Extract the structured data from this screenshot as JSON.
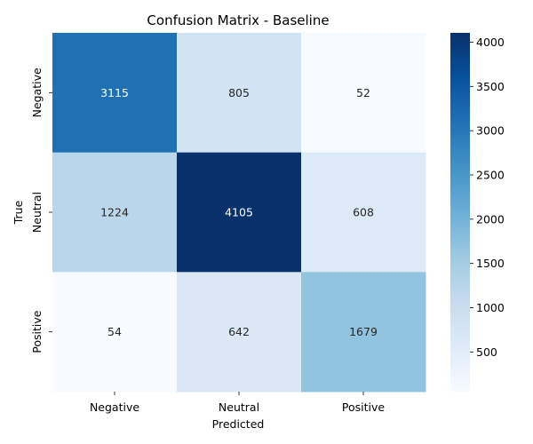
{
  "chart_data": {
    "type": "heatmap",
    "title": "Confusion Matrix - Baseline",
    "xlabel": "Predicted",
    "ylabel": "True",
    "x_categories": [
      "Negative",
      "Neutral",
      "Positive"
    ],
    "y_categories": [
      "Negative",
      "Neutral",
      "Positive"
    ],
    "values": [
      [
        3115,
        805,
        52
      ],
      [
        1224,
        4105,
        608
      ],
      [
        54,
        642,
        1679
      ]
    ],
    "colormap": "Blues",
    "value_range": [
      52,
      4105
    ],
    "colorbar_ticks": [
      500,
      1000,
      1500,
      2000,
      2500,
      3000,
      3500,
      4000
    ],
    "colorbar_labels": [
      "500",
      "1000",
      "1500",
      "2000",
      "2500",
      "3000",
      "3500",
      "4000"
    ],
    "annotations": true,
    "grid": false
  }
}
